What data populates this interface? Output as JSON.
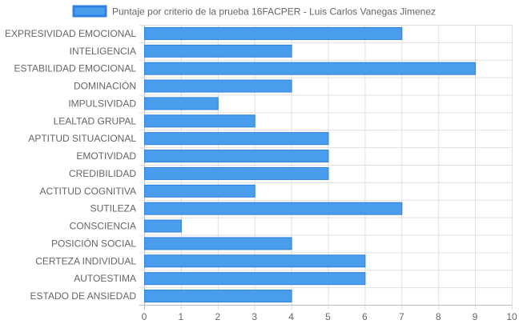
{
  "chart_data": {
    "type": "bar",
    "orientation": "horizontal",
    "categories": [
      "EXPRESIVIDAD EMOCIONAL",
      "INTELIGENCIA",
      "ESTABILIDAD EMOCIONAL",
      "DOMINACIÓN",
      "IMPULSIVIDAD",
      "LEALTAD GRUPAL",
      "APTITUD SITUACIONAL",
      "EMOTIVIDAD",
      "CREDIBILIDAD",
      "ACTITUD COGNITIVA",
      "SUTILEZA",
      "CONSCIENCIA",
      "POSICIÓN SOCIAL",
      "CERTEZA INDIVIDUAL",
      "AUTOESTIMA",
      "ESTADO DE ANSIEDAD"
    ],
    "series": [
      {
        "name": "Puntaje por criterio de la prueba 16FACPER - Luis Carlos Vanegas Jimenez",
        "values": [
          7,
          4,
          9,
          4,
          2,
          3,
          5,
          5,
          5,
          3,
          7,
          1,
          4,
          6,
          6,
          4
        ],
        "color": "#4a9ced",
        "border_color": "#2f80e0"
      }
    ],
    "xlim": [
      0,
      10
    ],
    "x_ticks": [
      "0",
      "1",
      "2",
      "3",
      "4",
      "5",
      "6",
      "7",
      "8",
      "9",
      "10"
    ],
    "grid": true,
    "legend_position": "top"
  }
}
